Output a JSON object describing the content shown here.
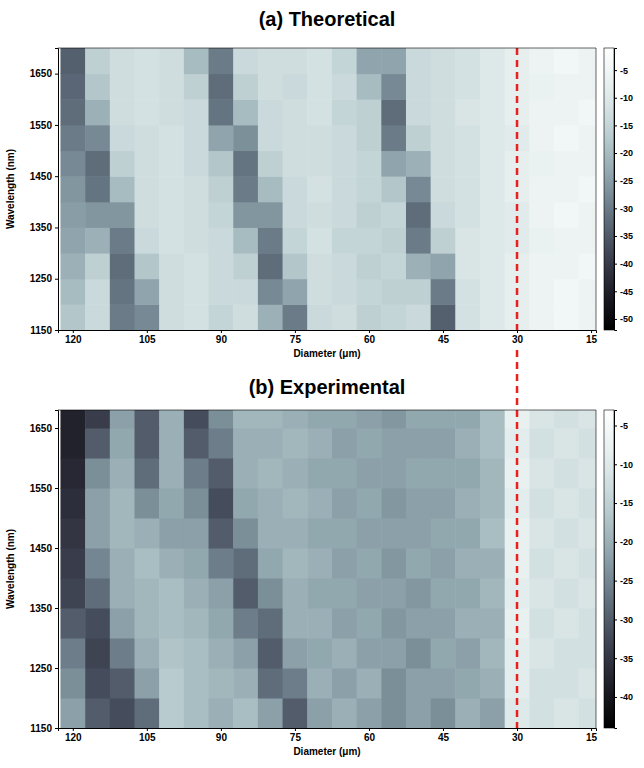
{
  "chart_data": [
    {
      "type": "heatmap",
      "title": "(a) Theoretical",
      "x_label": "Diameter (μm)",
      "y_label": "Wavelength (nm)",
      "xlim": [
        123,
        14
      ],
      "ylim": [
        1150,
        1700
      ],
      "xticks": [
        120,
        105,
        90,
        75,
        60,
        45,
        30,
        15
      ],
      "yticks": [
        1150,
        1250,
        1350,
        1450,
        1550,
        1650
      ],
      "x": [
        120,
        115,
        110,
        105,
        100,
        95,
        90,
        85,
        80,
        75,
        70,
        65,
        60,
        55,
        50,
        45,
        40,
        35,
        30,
        25,
        20,
        15
      ],
      "y": [
        1175,
        1225,
        1275,
        1325,
        1375,
        1425,
        1475,
        1525,
        1575,
        1625,
        1675
      ],
      "z": [
        [
          -18,
          -14,
          -30,
          -28,
          -13,
          -12,
          -15,
          -13,
          -22,
          -30,
          -14,
          -13,
          -16,
          -15,
          -14,
          -34,
          -12,
          -10,
          -8,
          -6,
          -5,
          -6
        ],
        [
          -20,
          -14,
          -31,
          -24,
          -13,
          -12,
          -14,
          -14,
          -28,
          -24,
          -13,
          -14,
          -15,
          -16,
          -16,
          -30,
          -12,
          -10,
          -8,
          -6,
          -5,
          -6
        ],
        [
          -22,
          -16,
          -32,
          -18,
          -13,
          -12,
          -14,
          -16,
          -32,
          -18,
          -13,
          -14,
          -16,
          -15,
          -22,
          -24,
          -11,
          -10,
          -8,
          -6,
          -6,
          -5
        ],
        [
          -24,
          -22,
          -30,
          -14,
          -12,
          -13,
          -14,
          -20,
          -30,
          -15,
          -12,
          -15,
          -15,
          -16,
          -30,
          -16,
          -11,
          -10,
          -9,
          -7,
          -6,
          -6
        ],
        [
          -25,
          -26,
          -26,
          -13,
          -12,
          -13,
          -15,
          -26,
          -26,
          -14,
          -13,
          -14,
          -16,
          -15,
          -32,
          -14,
          -12,
          -10,
          -9,
          -6,
          -5,
          -6
        ],
        [
          -26,
          -31,
          -20,
          -13,
          -12,
          -13,
          -16,
          -30,
          -20,
          -14,
          -12,
          -14,
          -15,
          -18,
          -28,
          -13,
          -12,
          -10,
          -8,
          -6,
          -6,
          -5
        ],
        [
          -28,
          -32,
          -16,
          -13,
          -12,
          -14,
          -18,
          -31,
          -16,
          -13,
          -13,
          -14,
          -15,
          -24,
          -22,
          -13,
          -12,
          -10,
          -8,
          -7,
          -6,
          -6
        ],
        [
          -30,
          -28,
          -14,
          -13,
          -12,
          -14,
          -24,
          -27,
          -14,
          -13,
          -13,
          -14,
          -16,
          -30,
          -16,
          -13,
          -12,
          -10,
          -9,
          -6,
          -5,
          -6
        ],
        [
          -32,
          -22,
          -13,
          -12,
          -13,
          -14,
          -31,
          -20,
          -14,
          -13,
          -12,
          -15,
          -16,
          -32,
          -14,
          -13,
          -11,
          -10,
          -8,
          -6,
          -6,
          -5
        ],
        [
          -33,
          -18,
          -13,
          -12,
          -13,
          -16,
          -32,
          -16,
          -13,
          -14,
          -12,
          -14,
          -20,
          -28,
          -14,
          -13,
          -12,
          -10,
          -8,
          -7,
          -6,
          -6
        ],
        [
          -34,
          -16,
          -13,
          -12,
          -13,
          -20,
          -30,
          -14,
          -13,
          -13,
          -12,
          -15,
          -24,
          -24,
          -14,
          -13,
          -12,
          -10,
          -8,
          -6,
          -5,
          -6
        ]
      ],
      "colorbar": {
        "range": [
          -52,
          -1
        ],
        "ticks": [
          -5,
          -10,
          -15,
          -20,
          -25,
          -30,
          -35,
          -40,
          -45,
          -50
        ]
      },
      "vline": {
        "x": 30,
        "color": "#e8201e",
        "line_style": "dashed"
      }
    },
    {
      "type": "heatmap",
      "title": "(b) Experimental",
      "x_label": "Diameter (μm)",
      "y_label": "Wavelength (nm)",
      "xlim": [
        123,
        14
      ],
      "ylim": [
        1150,
        1680
      ],
      "xticks": [
        120,
        105,
        90,
        75,
        60,
        45,
        30,
        15
      ],
      "yticks": [
        1150,
        1250,
        1350,
        1450,
        1550,
        1650
      ],
      "x": [
        120,
        115,
        110,
        105,
        100,
        95,
        90,
        85,
        80,
        75,
        70,
        65,
        60,
        55,
        50,
        45,
        40,
        35,
        30,
        25,
        20,
        15
      ],
      "y": [
        1175,
        1225,
        1275,
        1325,
        1375,
        1425,
        1475,
        1525,
        1575,
        1625,
        1675
      ],
      "z": [
        [
          -22,
          -30,
          -32,
          -28,
          -16,
          -18,
          -20,
          -18,
          -22,
          -30,
          -22,
          -20,
          -22,
          -24,
          -22,
          -24,
          -20,
          -22,
          -10,
          -12,
          -11,
          -12
        ],
        [
          -24,
          -32,
          -30,
          -22,
          -16,
          -18,
          -19,
          -20,
          -28,
          -26,
          -20,
          -22,
          -20,
          -24,
          -22,
          -22,
          -21,
          -20,
          -9,
          -12,
          -12,
          -11
        ],
        [
          -26,
          -33,
          -26,
          -20,
          -17,
          -18,
          -20,
          -22,
          -30,
          -22,
          -21,
          -20,
          -22,
          -22,
          -24,
          -21,
          -22,
          -19,
          -9,
          -11,
          -12,
          -12
        ],
        [
          -30,
          -32,
          -22,
          -19,
          -18,
          -19,
          -21,
          -26,
          -28,
          -20,
          -20,
          -22,
          -21,
          -23,
          -22,
          -22,
          -20,
          -20,
          -8,
          -12,
          -11,
          -12
        ],
        [
          -33,
          -28,
          -20,
          -19,
          -18,
          -20,
          -22,
          -30,
          -24,
          -20,
          -21,
          -21,
          -22,
          -22,
          -23,
          -21,
          -21,
          -19,
          -9,
          -11,
          -12,
          -11
        ],
        [
          -34,
          -25,
          -20,
          -18,
          -20,
          -21,
          -26,
          -28,
          -21,
          -19,
          -20,
          -22,
          -21,
          -23,
          -21,
          -22,
          -20,
          -20,
          -8,
          -12,
          -11,
          -12
        ],
        [
          -35,
          -22,
          -19,
          -20,
          -22,
          -22,
          -30,
          -24,
          -20,
          -20,
          -21,
          -21,
          -22,
          -22,
          -22,
          -21,
          -21,
          -18,
          -8,
          -11,
          -12,
          -11
        ],
        [
          -36,
          -22,
          -19,
          -24,
          -21,
          -24,
          -32,
          -21,
          -20,
          -19,
          -20,
          -22,
          -21,
          -23,
          -22,
          -22,
          -20,
          -19,
          -9,
          -12,
          -11,
          -12
        ],
        [
          -37,
          -24,
          -20,
          -28,
          -20,
          -26,
          -30,
          -20,
          -19,
          -20,
          -21,
          -21,
          -22,
          -22,
          -21,
          -21,
          -21,
          -19,
          -8,
          -11,
          -12,
          -11
        ],
        [
          -38,
          -30,
          -21,
          -30,
          -20,
          -30,
          -26,
          -20,
          -20,
          -19,
          -20,
          -22,
          -21,
          -22,
          -22,
          -22,
          -20,
          -18,
          -9,
          -12,
          -11,
          -12
        ],
        [
          -38,
          -34,
          -22,
          -30,
          -20,
          -32,
          -24,
          -19,
          -19,
          -20,
          -21,
          -21,
          -22,
          -23,
          -21,
          -21,
          -21,
          -18,
          -8,
          -11,
          -12,
          -11
        ]
      ],
      "colorbar": {
        "range": [
          -44,
          -3
        ],
        "ticks": [
          -5,
          -10,
          -15,
          -20,
          -25,
          -30,
          -35,
          -40
        ]
      },
      "vline": {
        "x": 30,
        "color": "#e8201e",
        "line_style": "dashed"
      }
    }
  ]
}
